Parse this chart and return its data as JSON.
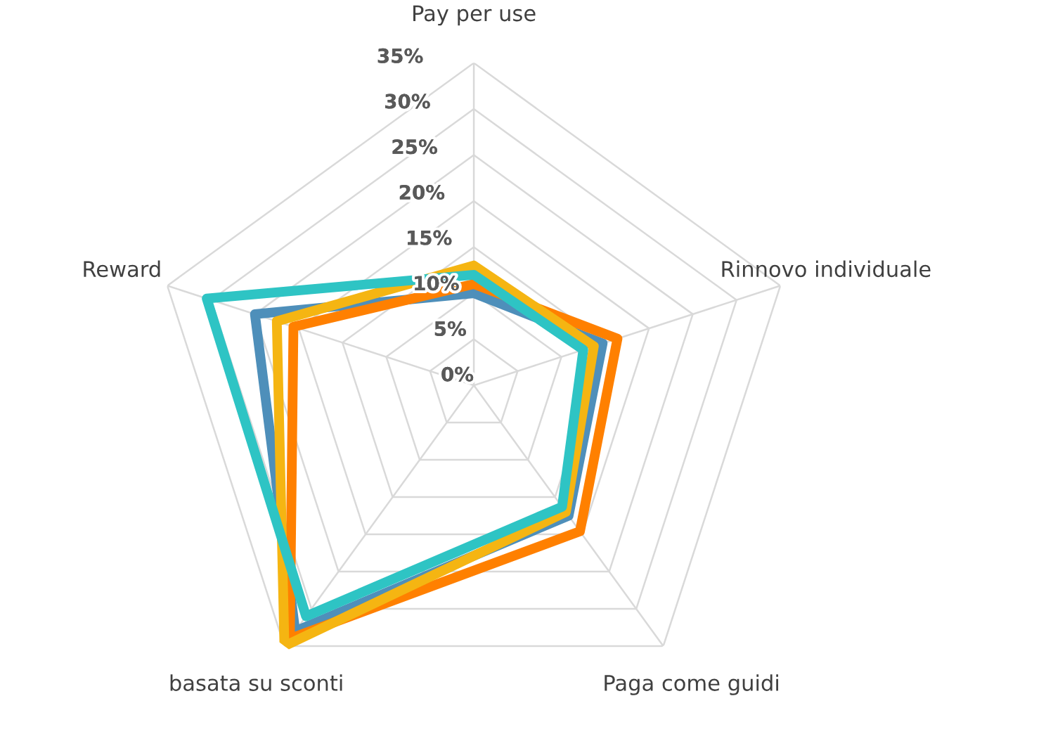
{
  "chart_data": {
    "type": "radar",
    "categories": [
      "Pay per use",
      "Rinnovo individuale",
      "Paga come guidi",
      "basata su sconti",
      "Reward"
    ],
    "series": [
      {
        "color": "#4e8fba",
        "values": [
          10,
          14.7,
          17.5,
          33,
          25
        ]
      },
      {
        "color": "#ff8000",
        "values": [
          11,
          16.4,
          19.6,
          34,
          20.6
        ]
      },
      {
        "color": "#f5b512",
        "values": [
          13,
          13.7,
          17,
          35,
          22.5
        ]
      },
      {
        "color": "#2ec4c4",
        "values": [
          12,
          12.5,
          16.3,
          31,
          30.5
        ]
      }
    ],
    "ylim": [
      0,
      35
    ],
    "yticks": [
      {
        "value": 0,
        "label": "0%"
      },
      {
        "value": 5,
        "label": "5%"
      },
      {
        "value": 10,
        "label": "10%"
      },
      {
        "value": 15,
        "label": "15%"
      },
      {
        "value": 20,
        "label": "20%"
      },
      {
        "value": 25,
        "label": "25%"
      },
      {
        "value": 30,
        "label": "30%"
      },
      {
        "value": 35,
        "label": "35%"
      }
    ],
    "grid": true
  }
}
